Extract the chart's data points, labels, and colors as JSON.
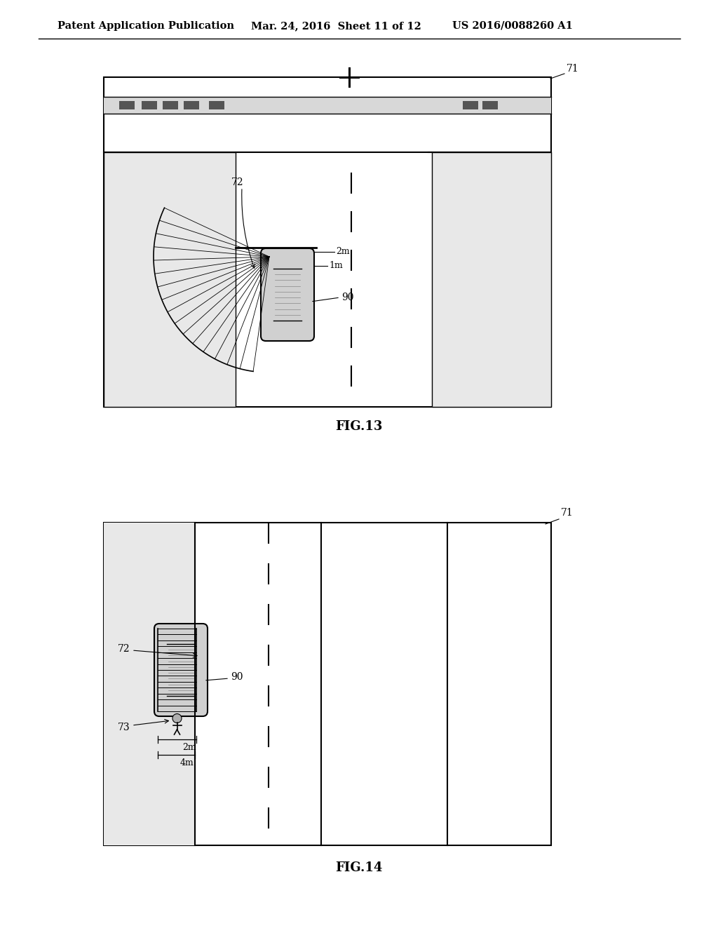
{
  "bg_color": "#ffffff",
  "line_color": "#000000",
  "header_text": "Patent Application Publication",
  "header_date": "Mar. 24, 2016  Sheet 11 of 12",
  "header_patent": "US 2016/0088260 A1",
  "fig13_label": "FIG.13",
  "fig14_label": "FIG.14",
  "label_71a": "71",
  "label_72a": "72",
  "label_90a": "90",
  "label_2ma": "2m",
  "label_1ma": "1m",
  "label_71b": "71",
  "label_72b": "72",
  "label_73b": "73",
  "label_90b": "90",
  "label_2mb": "2m",
  "label_4mb": "4m"
}
